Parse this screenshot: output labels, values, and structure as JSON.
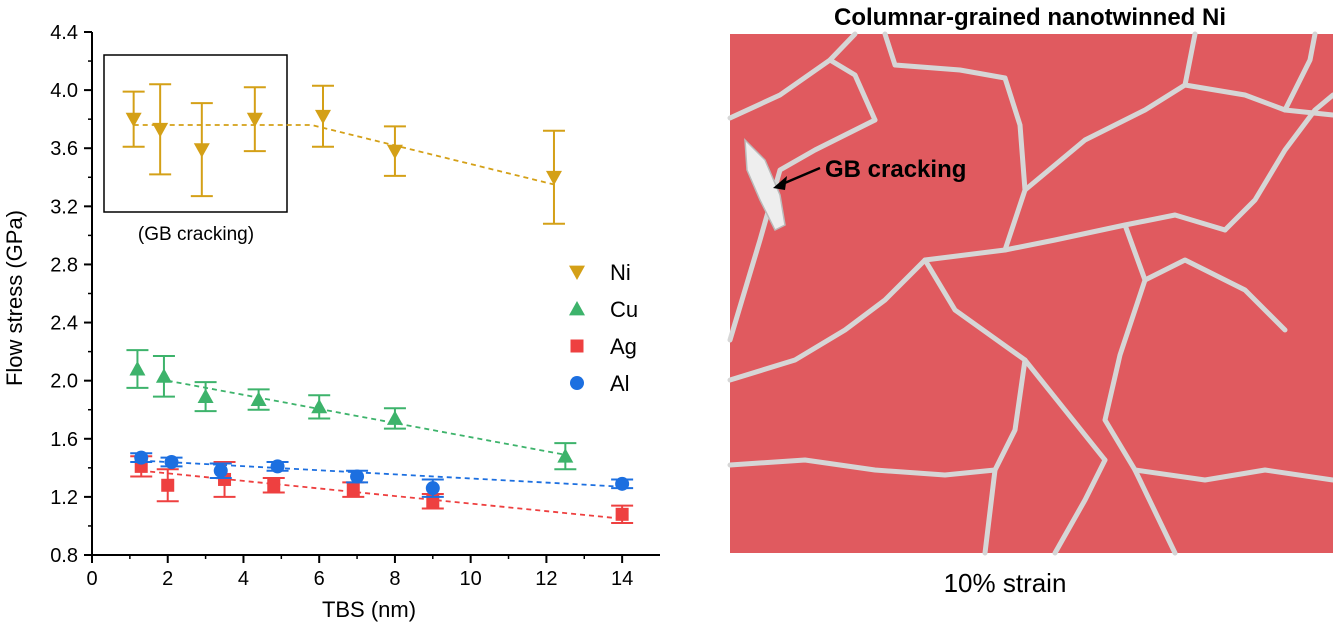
{
  "chart_data": {
    "type": "scatter",
    "xlabel": "TBS (nm)",
    "ylabel": "Flow stress (GPa)",
    "xlim": [
      0,
      15
    ],
    "ylim": [
      0.8,
      4.4
    ],
    "xticks": [
      "0",
      "2",
      "4",
      "6",
      "8",
      "10",
      "12",
      "14"
    ],
    "yticks": [
      "0.8",
      "1.2",
      "1.6",
      "2.0",
      "2.4",
      "2.8",
      "3.2",
      "3.6",
      "4.0",
      "4.4"
    ],
    "grid": false,
    "legend_position": "right",
    "inset_label": "(GB cracking)",
    "series": [
      {
        "name": "Ni",
        "marker": "triangle-down",
        "color": "#d4a017",
        "x": [
          1.1,
          1.8,
          2.9,
          4.3,
          6.1,
          8.0,
          12.2
        ],
        "y": [
          3.8,
          3.73,
          3.59,
          3.8,
          3.82,
          3.58,
          3.4
        ],
        "err": [
          0.19,
          0.31,
          0.32,
          0.22,
          0.21,
          0.17,
          0.32
        ],
        "trend": [
          [
            1.1,
            3.76
          ],
          [
            5.8,
            3.76
          ],
          [
            12.2,
            3.35
          ]
        ]
      },
      {
        "name": "Cu",
        "marker": "triangle-up",
        "color": "#3db36b",
        "x": [
          1.2,
          1.9,
          3.0,
          4.4,
          6.0,
          8.0,
          12.5
        ],
        "y": [
          2.08,
          2.03,
          1.89,
          1.87,
          1.82,
          1.74,
          1.48
        ],
        "err": [
          0.13,
          0.14,
          0.1,
          0.07,
          0.08,
          0.07,
          0.09
        ],
        "trend": [
          [
            2.0,
            2.0
          ],
          [
            12.5,
            1.49
          ]
        ]
      },
      {
        "name": "Ag",
        "marker": "square",
        "color": "#ee4040",
        "x": [
          1.3,
          2.0,
          3.5,
          4.8,
          6.9,
          9.0,
          14.0
        ],
        "y": [
          1.41,
          1.28,
          1.32,
          1.28,
          1.25,
          1.17,
          1.08
        ],
        "err": [
          0.07,
          0.11,
          0.12,
          0.05,
          0.05,
          0.05,
          0.06
        ],
        "trend": [
          [
            1.3,
            1.38
          ],
          [
            14.0,
            1.05
          ]
        ]
      },
      {
        "name": "Al",
        "marker": "circle",
        "color": "#1c6fe0",
        "x": [
          1.3,
          2.1,
          3.4,
          4.9,
          7.0,
          9.0,
          14.0
        ],
        "y": [
          1.47,
          1.44,
          1.38,
          1.41,
          1.34,
          1.26,
          1.29
        ],
        "err": [
          0.03,
          0.03,
          0.05,
          0.03,
          0.04,
          0.06,
          0.03
        ],
        "trend": [
          [
            1.3,
            1.45
          ],
          [
            14.0,
            1.27
          ]
        ]
      }
    ]
  },
  "micrograph": {
    "title": "Columnar-grained nanotwinned Ni",
    "annotation": "GB cracking",
    "caption": "10% strain",
    "grain_color": "#e05a5f",
    "boundary_color": "#d6d6d6"
  }
}
